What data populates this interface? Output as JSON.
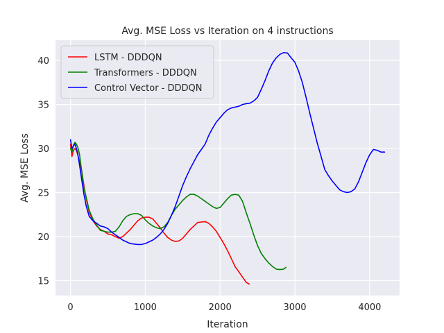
{
  "chart_data": {
    "type": "line",
    "title": "Avg. MSE Loss vs Iteration on 4 instructions",
    "xlabel": "Iteration",
    "ylabel": "Avg. MSE Loss",
    "xlim": [
      -200,
      4400
    ],
    "ylim": [
      13.3,
      42.3
    ],
    "xticks": [
      0,
      1000,
      2000,
      3000,
      4000
    ],
    "yticks": [
      15,
      20,
      25,
      30,
      35,
      40
    ],
    "grid": true,
    "legend_position": "top-left",
    "background": "#eaeaf2",
    "series": [
      {
        "name": "LSTM - DDDQN",
        "color": "#ff0000",
        "x": [
          0,
          20,
          40,
          60,
          80,
          100,
          120,
          150,
          180,
          210,
          250,
          300,
          350,
          400,
          450,
          500,
          550,
          600,
          650,
          700,
          750,
          800,
          850,
          900,
          950,
          1000,
          1050,
          1100,
          1150,
          1200,
          1250,
          1300,
          1350,
          1400,
          1450,
          1500,
          1550,
          1600,
          1650,
          1700,
          1750,
          1800,
          1850,
          1900,
          1950,
          2000,
          2050,
          2100,
          2150,
          2200,
          2250,
          2300,
          2350,
          2390
        ],
        "y": [
          30.5,
          29.1,
          29.8,
          30.0,
          29.8,
          29.2,
          28.6,
          27.5,
          25.8,
          24.3,
          22.8,
          21.8,
          21.2,
          20.8,
          20.6,
          20.3,
          20.2,
          20.0,
          19.8,
          20.0,
          20.4,
          20.8,
          21.3,
          21.8,
          22.1,
          22.2,
          22.2,
          22.0,
          21.5,
          21.0,
          20.4,
          19.9,
          19.6,
          19.45,
          19.5,
          19.8,
          20.3,
          20.8,
          21.2,
          21.6,
          21.65,
          21.7,
          21.5,
          21.1,
          20.6,
          19.9,
          19.2,
          18.4,
          17.5,
          16.6,
          16.0,
          15.4,
          14.8,
          14.6
        ]
      },
      {
        "name": "Transformers - DDDQN",
        "color": "#008000",
        "x": [
          0,
          20,
          40,
          60,
          80,
          100,
          120,
          150,
          180,
          210,
          250,
          300,
          350,
          400,
          450,
          500,
          550,
          600,
          650,
          700,
          750,
          800,
          850,
          900,
          950,
          1000,
          1050,
          1100,
          1150,
          1200,
          1250,
          1300,
          1350,
          1400,
          1450,
          1500,
          1550,
          1600,
          1650,
          1700,
          1750,
          1800,
          1850,
          1900,
          1950,
          2000,
          2050,
          2100,
          2150,
          2200,
          2250,
          2300,
          2350,
          2400,
          2450,
          2500,
          2550,
          2600,
          2650,
          2700,
          2750,
          2800,
          2850,
          2880
        ],
        "y": [
          30.0,
          29.6,
          30.4,
          30.7,
          30.5,
          30.1,
          29.4,
          27.5,
          25.5,
          24.5,
          23.0,
          22.0,
          21.3,
          20.7,
          20.6,
          20.5,
          20.5,
          20.6,
          21.1,
          21.8,
          22.3,
          22.5,
          22.6,
          22.6,
          22.4,
          21.9,
          21.5,
          21.2,
          21.0,
          20.9,
          21.1,
          21.6,
          22.4,
          23.1,
          23.6,
          24.1,
          24.5,
          24.8,
          24.8,
          24.6,
          24.3,
          24.0,
          23.7,
          23.4,
          23.2,
          23.3,
          23.8,
          24.3,
          24.7,
          24.8,
          24.7,
          24.0,
          22.7,
          21.5,
          20.2,
          19.0,
          18.1,
          17.5,
          17.0,
          16.6,
          16.3,
          16.25,
          16.3,
          16.5
        ]
      },
      {
        "name": "Control Vector - DDDQN",
        "color": "#0000ff",
        "x": [
          0,
          20,
          40,
          60,
          80,
          100,
          120,
          150,
          180,
          210,
          250,
          300,
          350,
          400,
          450,
          500,
          550,
          600,
          650,
          700,
          750,
          800,
          850,
          900,
          950,
          1000,
          1050,
          1100,
          1150,
          1200,
          1250,
          1300,
          1350,
          1400,
          1450,
          1500,
          1550,
          1600,
          1650,
          1700,
          1750,
          1800,
          1850,
          1900,
          1950,
          2000,
          2050,
          2100,
          2150,
          2200,
          2250,
          2300,
          2350,
          2400,
          2450,
          2500,
          2550,
          2600,
          2650,
          2700,
          2750,
          2800,
          2850,
          2900,
          2950,
          3000,
          3050,
          3100,
          3150,
          3200,
          3250,
          3300,
          3350,
          3400,
          3450,
          3500,
          3550,
          3600,
          3650,
          3700,
          3750,
          3800,
          3850,
          3900,
          3950,
          4000,
          4050,
          4100,
          4150,
          4200
        ],
        "y": [
          31.0,
          30.0,
          30.3,
          30.5,
          30.0,
          29.3,
          28.2,
          26.5,
          24.8,
          23.5,
          22.3,
          21.8,
          21.5,
          21.2,
          21.1,
          20.9,
          20.5,
          20.2,
          19.9,
          19.6,
          19.4,
          19.2,
          19.15,
          19.1,
          19.1,
          19.2,
          19.4,
          19.6,
          19.9,
          20.3,
          20.8,
          21.5,
          22.4,
          23.4,
          24.6,
          25.8,
          26.8,
          27.7,
          28.5,
          29.3,
          29.9,
          30.5,
          31.5,
          32.3,
          33.0,
          33.5,
          34.0,
          34.4,
          34.6,
          34.7,
          34.8,
          35.0,
          35.1,
          35.15,
          35.4,
          35.8,
          36.7,
          37.7,
          38.8,
          39.7,
          40.3,
          40.7,
          40.9,
          40.85,
          40.3,
          39.8,
          38.8,
          37.5,
          35.8,
          34.0,
          32.3,
          30.6,
          29.1,
          27.6,
          26.9,
          26.3,
          25.8,
          25.3,
          25.1,
          25.0,
          25.1,
          25.4,
          26.2,
          27.3,
          28.4,
          29.3,
          29.9,
          29.8,
          29.6,
          29.6
        ]
      }
    ]
  }
}
